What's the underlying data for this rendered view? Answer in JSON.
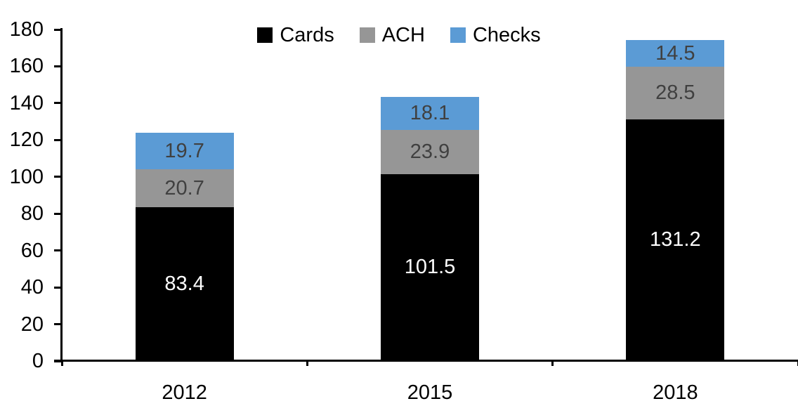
{
  "chart_data": {
    "type": "bar",
    "stacked": true,
    "title": "",
    "xlabel": "",
    "ylabel": "",
    "categories": [
      "2012",
      "2015",
      "2018"
    ],
    "series": [
      {
        "name": "Cards",
        "color": "#000000",
        "label_color": "#ffffff",
        "values": [
          83.4,
          101.5,
          131.2
        ]
      },
      {
        "name": "ACH",
        "color": "#969696",
        "label_color": "#404040",
        "values": [
          20.7,
          23.9,
          28.5
        ]
      },
      {
        "name": "Checks",
        "color": "#5b9bd5",
        "label_color": "#404040",
        "values": [
          19.7,
          18.1,
          14.5
        ]
      }
    ],
    "totals": [
      123.8,
      143.5,
      174.2
    ],
    "ylim": [
      0,
      180
    ],
    "ytick_step": 20,
    "grid": false,
    "legend_position": "top-center",
    "axis_color": "#000000"
  }
}
